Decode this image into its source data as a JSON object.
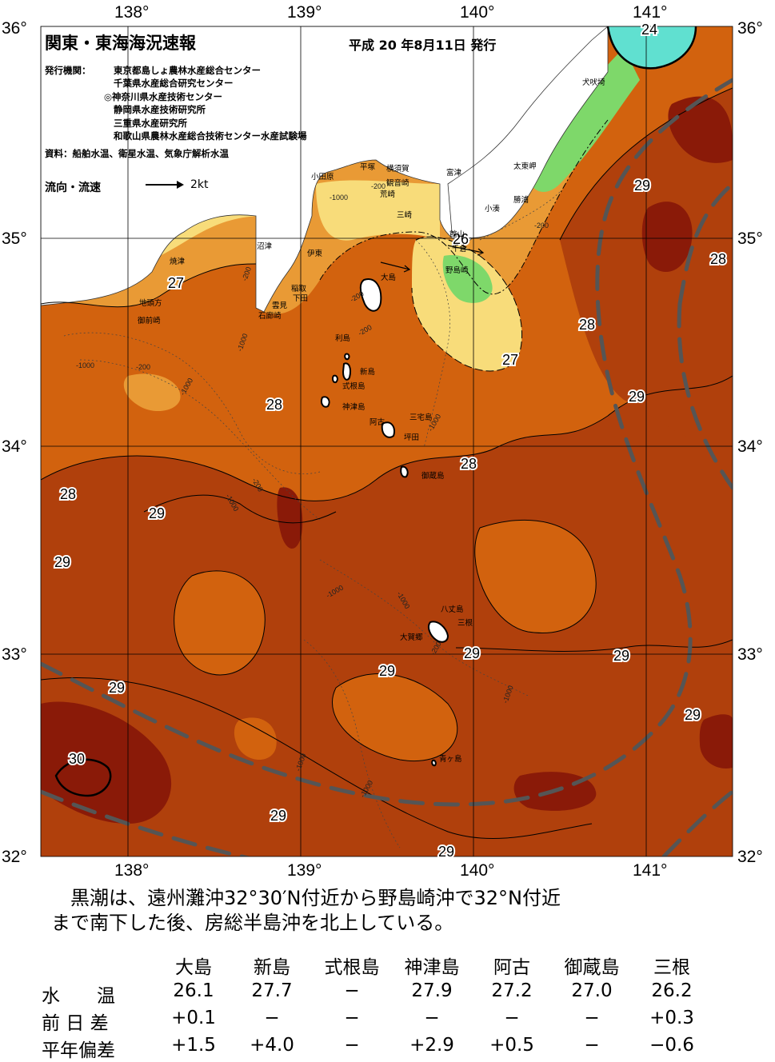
{
  "header": {
    "title": "関東・東海海況速報",
    "issue_date": "平成 20 年8月11日 発行",
    "issuer_label": "発行機関：",
    "issuers": [
      "東京都島しょ農林水産総合センター",
      "千葉県水産総合研究センター",
      "◎神奈川県水産技術センター",
      "静岡県水産技術研究所",
      "三重県水産研究所",
      "和歌山県農林水産総合技術センター水産試験場"
    ],
    "sources": "資料：船舶水温、衛星水温、気象庁解析水温",
    "current_label": "流向・流速",
    "current_speed": "2kt"
  },
  "map": {
    "lon_labels": [
      "138°",
      "139°",
      "140°",
      "141°"
    ],
    "lat_labels": [
      "36°",
      "35°",
      "34°",
      "33°",
      "32°"
    ],
    "colors": {
      "t30": "#8a1a08",
      "t29": "#b0400c",
      "t28": "#d2620e",
      "t27": "#e99a35",
      "t26": "#f8dc7a",
      "t25": "#7ed86a",
      "t24": "#60e0d0",
      "land": "#ffffff",
      "kuroshio": "#555555"
    },
    "isotherm_labels": [
      "24",
      "26",
      "27",
      "27",
      "28",
      "28",
      "28",
      "28",
      "28",
      "29",
      "29",
      "29",
      "29",
      "29",
      "29",
      "29",
      "29",
      "29",
      "29",
      "29",
      "29",
      "30"
    ],
    "depth_labels": [
      "-200",
      "-1000"
    ],
    "place_names": [
      "犬吠埼",
      "太東岬",
      "勝浦",
      "小湊",
      "館山",
      "千倉",
      "野島崎",
      "富津",
      "観音崎",
      "横須賀",
      "荒崎",
      "三崎",
      "平塚",
      "小田原",
      "伊東",
      "大島",
      "沼津",
      "焼津",
      "稲取",
      "下田",
      "雲見",
      "石廊崎",
      "地頭方",
      "御前崎",
      "利島",
      "新島",
      "式根島",
      "神津島",
      "三宅島",
      "阿古",
      "坪田",
      "御蔵島",
      "八丈島",
      "三根",
      "大賀郷",
      "青ヶ島"
    ]
  },
  "summary": [
    "　黒潮は、遠州灘沖32°30′N付近から野島崎沖で32°N付近",
    "まで南下した後、房総半島沖を北上している。"
  ],
  "observations": {
    "stations": [
      "大島",
      "新島",
      "式根島",
      "神津島",
      "阿古",
      "御蔵島",
      "三根"
    ],
    "rows": [
      {
        "label": "水　　温",
        "values": [
          "26.1",
          "27.7",
          "−",
          "27.9",
          "27.2",
          "27.0",
          "26.2"
        ]
      },
      {
        "label": "前 日 差",
        "values": [
          "+0.1",
          "−",
          "−",
          "−",
          "−",
          "−",
          "+0.3"
        ]
      },
      {
        "label": "平年偏差",
        "values": [
          "+1.5",
          "+4.0",
          "−",
          "+2.9",
          "+0.5",
          "−",
          "−0.6"
        ]
      }
    ]
  }
}
